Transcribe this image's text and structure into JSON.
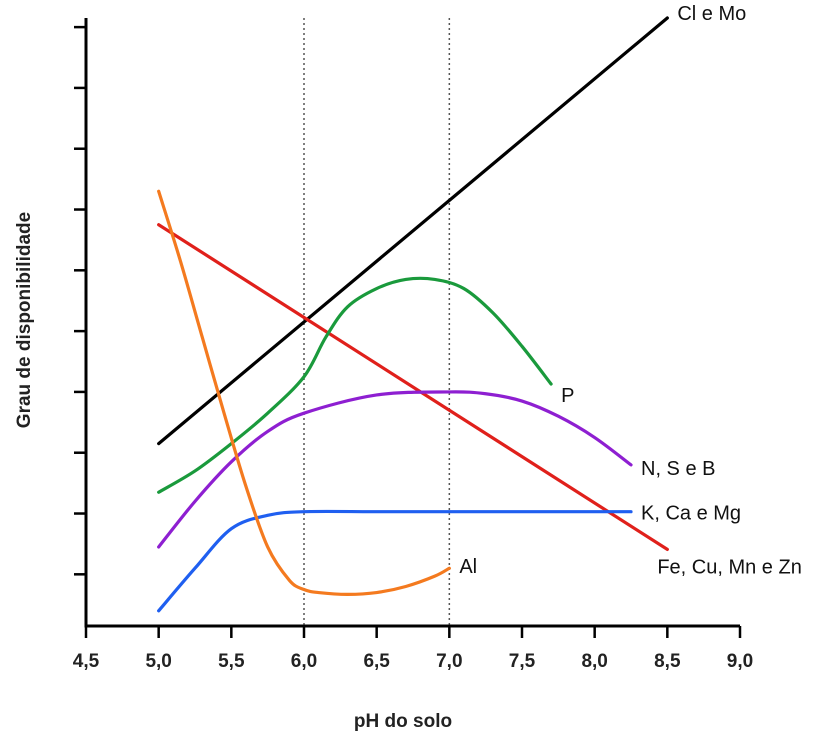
{
  "chart_data": {
    "type": "line",
    "title": "",
    "xlabel": "pH do solo",
    "ylabel": "Grau de disponibilidade",
    "xlim": [
      4.5,
      9.0
    ],
    "ylim": [
      0,
      10
    ],
    "x_ticks": [
      "4,5",
      "5,0",
      "5,5",
      "6,0",
      "6,5",
      "7,0",
      "7,5",
      "8,0",
      "8,5",
      "9,0"
    ],
    "x_tick_values": [
      4.5,
      5.0,
      5.5,
      6.0,
      6.5,
      7.0,
      7.5,
      8.0,
      8.5,
      9.0
    ],
    "y_tick_values": [
      0.85,
      1.85,
      2.85,
      3.85,
      4.85,
      5.85,
      6.85,
      7.85,
      8.85,
      9.85
    ],
    "reference_lines_x": [
      6.0,
      7.0
    ],
    "grid": false,
    "legend": "labels at line ends",
    "series": [
      {
        "name": "Cl e Mo",
        "color": "#000000",
        "x": [
          5.0,
          8.5
        ],
        "y": [
          3.0,
          10.0
        ]
      },
      {
        "name": "Fe, Cu, Mn e Zn",
        "color": "#e0201b",
        "x": [
          5.0,
          8.5
        ],
        "y": [
          6.6,
          1.26
        ]
      },
      {
        "name": "P",
        "color": "#1a9a3c",
        "x": [
          5.0,
          5.25,
          5.5,
          5.75,
          6.0,
          6.15,
          6.3,
          6.5,
          6.7,
          6.9,
          7.1,
          7.3,
          7.5,
          7.7
        ],
        "y": [
          2.2,
          2.55,
          3.0,
          3.5,
          4.1,
          4.75,
          5.25,
          5.55,
          5.7,
          5.7,
          5.55,
          5.15,
          4.6,
          3.98
        ]
      },
      {
        "name": "N, S e B",
        "color": "#8e1fd1",
        "x": [
          5.0,
          5.25,
          5.5,
          5.75,
          6.0,
          6.5,
          7.0,
          7.25,
          7.5,
          7.75,
          8.0,
          8.25
        ],
        "y": [
          1.3,
          2.05,
          2.7,
          3.2,
          3.5,
          3.8,
          3.85,
          3.82,
          3.7,
          3.45,
          3.1,
          2.65
        ]
      },
      {
        "name": "K, Ca e Mg",
        "color": "#1f5ff0",
        "x": [
          5.0,
          5.25,
          5.5,
          5.75,
          6.0,
          6.5,
          7.0,
          7.5,
          8.0,
          8.25
        ],
        "y": [
          0.25,
          0.95,
          1.6,
          1.82,
          1.88,
          1.88,
          1.88,
          1.88,
          1.88,
          1.88
        ]
      },
      {
        "name": "Al",
        "color": "#f47a1f",
        "x": [
          5.0,
          5.15,
          5.3,
          5.45,
          5.6,
          5.75,
          5.9,
          6.0,
          6.1,
          6.3,
          6.5,
          6.7,
          6.9,
          7.0
        ],
        "y": [
          7.15,
          6.0,
          4.75,
          3.5,
          2.3,
          1.3,
          0.75,
          0.6,
          0.55,
          0.52,
          0.55,
          0.65,
          0.82,
          0.95
        ]
      }
    ],
    "series_labels": [
      {
        "text": "Cl e Mo",
        "x": 8.5,
        "y": 10.0
      },
      {
        "text": "Fe, Cu, Mn e Zn",
        "x": 8.5,
        "y": 1.26
      },
      {
        "text": "P",
        "x": 7.7,
        "y": 3.98
      },
      {
        "text": "N, S e B",
        "x": 8.25,
        "y": 2.65
      },
      {
        "text": "K, Ca e Mg",
        "x": 8.25,
        "y": 1.88
      },
      {
        "text": "Al",
        "x": 7.0,
        "y": 0.95
      }
    ]
  }
}
